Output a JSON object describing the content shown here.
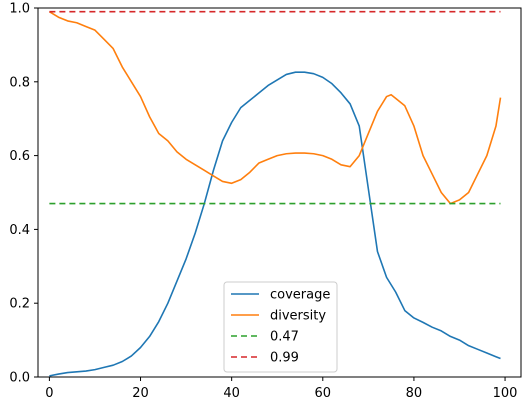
{
  "chart_data": {
    "type": "line",
    "title": "",
    "xlabel": "",
    "ylabel": "",
    "xlim": [
      -2.5,
      103.5
    ],
    "ylim": [
      0,
      1
    ],
    "x_ticks": [
      0,
      20,
      40,
      60,
      80,
      100
    ],
    "y_ticks": [
      0.0,
      0.2,
      0.4,
      0.6,
      0.8,
      1.0
    ],
    "x_tick_labels": [
      "0",
      "20",
      "40",
      "60",
      "80",
      "100"
    ],
    "y_tick_labels": [
      "0.0",
      "0.2",
      "0.4",
      "0.6",
      "0.8",
      "1.0"
    ],
    "grid": false,
    "legend_position": "lower-center",
    "series": [
      {
        "name": "coverage",
        "color": "#1f77b4",
        "style": "solid",
        "x": [
          0,
          2,
          4,
          6,
          8,
          10,
          12,
          14,
          16,
          18,
          20,
          22,
          24,
          26,
          28,
          30,
          32,
          34,
          36,
          38,
          40,
          42,
          44,
          46,
          48,
          50,
          52,
          54,
          56,
          58,
          60,
          62,
          64,
          66,
          68,
          70,
          72,
          74,
          76,
          78,
          80,
          82,
          84,
          86,
          88,
          90,
          92,
          94,
          96,
          98,
          99
        ],
        "y": [
          0.003,
          0.008,
          0.012,
          0.014,
          0.016,
          0.02,
          0.026,
          0.032,
          0.042,
          0.057,
          0.08,
          0.11,
          0.15,
          0.2,
          0.26,
          0.32,
          0.39,
          0.47,
          0.56,
          0.64,
          0.69,
          0.73,
          0.75,
          0.77,
          0.79,
          0.805,
          0.82,
          0.826,
          0.826,
          0.822,
          0.812,
          0.795,
          0.77,
          0.74,
          0.68,
          0.51,
          0.34,
          0.27,
          0.23,
          0.18,
          0.16,
          0.148,
          0.135,
          0.125,
          0.11,
          0.1,
          0.085,
          0.075,
          0.065,
          0.055,
          0.05
        ]
      },
      {
        "name": "diversity",
        "color": "#ff7f0e",
        "style": "solid",
        "x": [
          0,
          2,
          4,
          6,
          8,
          10,
          12,
          14,
          16,
          18,
          20,
          22,
          24,
          26,
          28,
          30,
          32,
          34,
          36,
          38,
          40,
          42,
          44,
          46,
          48,
          50,
          52,
          54,
          56,
          58,
          60,
          62,
          64,
          66,
          67,
          68,
          70,
          72,
          74,
          75,
          76,
          78,
          80,
          82,
          84,
          86,
          88,
          90,
          92,
          94,
          96,
          98,
          99
        ],
        "y": [
          0.99,
          0.975,
          0.965,
          0.96,
          0.95,
          0.94,
          0.915,
          0.89,
          0.84,
          0.8,
          0.76,
          0.705,
          0.66,
          0.64,
          0.61,
          0.59,
          0.575,
          0.56,
          0.545,
          0.53,
          0.525,
          0.535,
          0.555,
          0.58,
          0.59,
          0.6,
          0.605,
          0.607,
          0.607,
          0.605,
          0.6,
          0.59,
          0.575,
          0.57,
          0.585,
          0.6,
          0.66,
          0.72,
          0.76,
          0.765,
          0.755,
          0.735,
          0.68,
          0.6,
          0.55,
          0.5,
          0.47,
          0.48,
          0.5,
          0.55,
          0.6,
          0.68,
          0.757
        ]
      },
      {
        "name": "0.47",
        "color": "#2ca02c",
        "style": "dashed",
        "x": [
          0,
          99
        ],
        "y": [
          0.47,
          0.47
        ]
      },
      {
        "name": "0.99",
        "color": "#d62728",
        "style": "dashed",
        "x": [
          0,
          99
        ],
        "y": [
          0.99,
          0.99
        ]
      }
    ]
  }
}
